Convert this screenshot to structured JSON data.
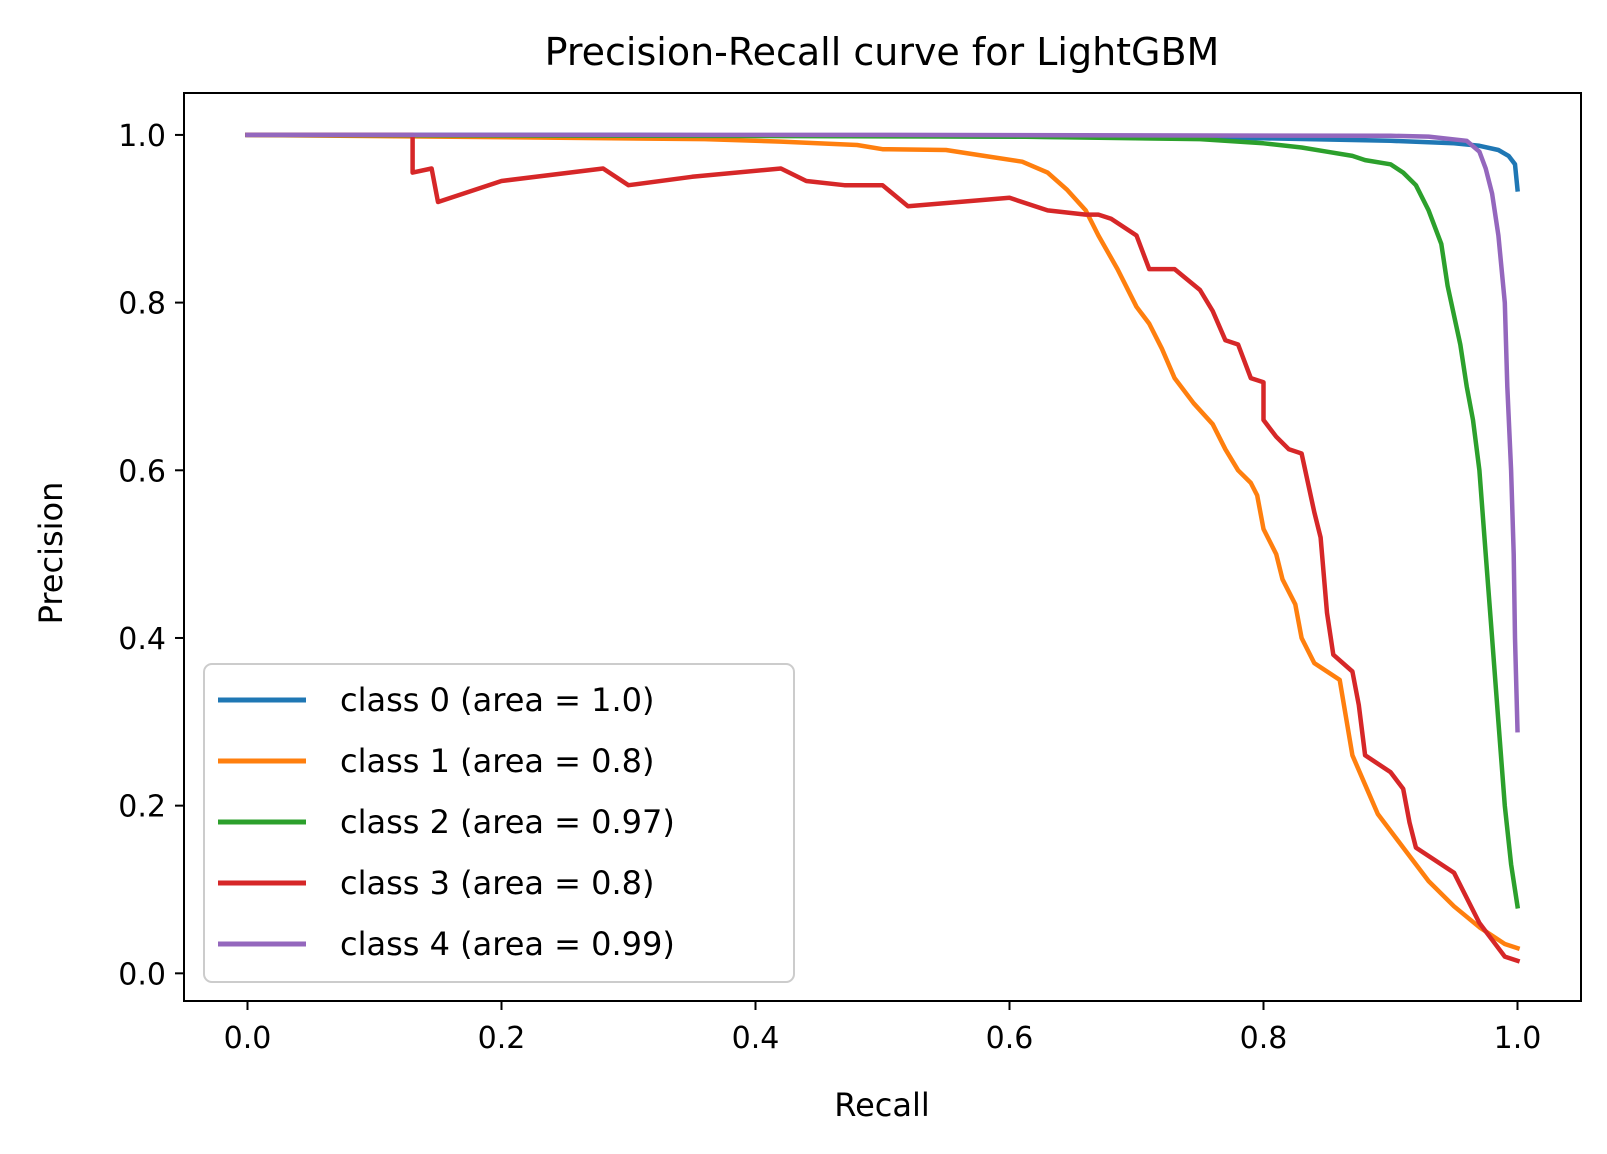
{
  "chart_data": {
    "type": "line",
    "title": "Precision-Recall curve for LightGBM",
    "xlabel": "Recall",
    "ylabel": "Precision",
    "xlim": [
      -0.05,
      1.05
    ],
    "ylim": [
      -0.033,
      1.05
    ],
    "xticks": [
      0.0,
      0.2,
      0.4,
      0.6,
      0.8,
      1.0
    ],
    "xtick_labels": [
      "0.0",
      "0.2",
      "0.4",
      "0.6",
      "0.8",
      "1.0"
    ],
    "yticks": [
      0.0,
      0.2,
      0.4,
      0.6,
      0.8,
      1.0
    ],
    "ytick_labels": [
      "0.0",
      "0.2",
      "0.4",
      "0.6",
      "0.8",
      "1.0"
    ],
    "grid": false,
    "legend_position": "lower-left",
    "series": [
      {
        "name": "class 0 (area = 1.0)",
        "color": "#1f77b4",
        "points": [
          [
            0.0,
            1.0
          ],
          [
            0.3,
            1.0
          ],
          [
            0.6,
            0.998
          ],
          [
            0.8,
            0.996
          ],
          [
            0.9,
            0.993
          ],
          [
            0.95,
            0.99
          ],
          [
            0.97,
            0.987
          ],
          [
            0.985,
            0.982
          ],
          [
            0.993,
            0.975
          ],
          [
            0.998,
            0.965
          ],
          [
            1.0,
            0.935
          ]
        ]
      },
      {
        "name": "class 1 (area = 0.8)",
        "color": "#ff7f0e",
        "points": [
          [
            0.0,
            1.0
          ],
          [
            0.36,
            0.995
          ],
          [
            0.42,
            0.992
          ],
          [
            0.48,
            0.988
          ],
          [
            0.5,
            0.983
          ],
          [
            0.55,
            0.982
          ],
          [
            0.58,
            0.975
          ],
          [
            0.61,
            0.968
          ],
          [
            0.63,
            0.955
          ],
          [
            0.645,
            0.935
          ],
          [
            0.66,
            0.91
          ],
          [
            0.67,
            0.88
          ],
          [
            0.685,
            0.84
          ],
          [
            0.7,
            0.795
          ],
          [
            0.71,
            0.775
          ],
          [
            0.72,
            0.745
          ],
          [
            0.73,
            0.71
          ],
          [
            0.745,
            0.68
          ],
          [
            0.76,
            0.655
          ],
          [
            0.77,
            0.625
          ],
          [
            0.78,
            0.6
          ],
          [
            0.79,
            0.585
          ],
          [
            0.795,
            0.57
          ],
          [
            0.8,
            0.53
          ],
          [
            0.81,
            0.5
          ],
          [
            0.815,
            0.47
          ],
          [
            0.825,
            0.44
          ],
          [
            0.83,
            0.4
          ],
          [
            0.84,
            0.37
          ],
          [
            0.86,
            0.35
          ],
          [
            0.87,
            0.26
          ],
          [
            0.88,
            0.225
          ],
          [
            0.89,
            0.19
          ],
          [
            0.91,
            0.15
          ],
          [
            0.93,
            0.11
          ],
          [
            0.95,
            0.08
          ],
          [
            0.97,
            0.055
          ],
          [
            0.99,
            0.035
          ],
          [
            1.0,
            0.03
          ]
        ]
      },
      {
        "name": "class 2 (area = 0.97)",
        "color": "#2ca02c",
        "points": [
          [
            0.0,
            1.0
          ],
          [
            0.6,
            0.998
          ],
          [
            0.75,
            0.995
          ],
          [
            0.8,
            0.99
          ],
          [
            0.83,
            0.985
          ],
          [
            0.85,
            0.98
          ],
          [
            0.87,
            0.975
          ],
          [
            0.88,
            0.97
          ],
          [
            0.9,
            0.965
          ],
          [
            0.91,
            0.955
          ],
          [
            0.92,
            0.94
          ],
          [
            0.93,
            0.91
          ],
          [
            0.94,
            0.87
          ],
          [
            0.945,
            0.82
          ],
          [
            0.955,
            0.75
          ],
          [
            0.96,
            0.7
          ],
          [
            0.965,
            0.66
          ],
          [
            0.97,
            0.6
          ],
          [
            0.975,
            0.5
          ],
          [
            0.98,
            0.4
          ],
          [
            0.985,
            0.3
          ],
          [
            0.99,
            0.2
          ],
          [
            0.995,
            0.13
          ],
          [
            1.0,
            0.08
          ]
        ]
      },
      {
        "name": "class 3 (area = 0.8)",
        "color": "#d62728",
        "points": [
          [
            0.0,
            1.0
          ],
          [
            0.13,
            1.0
          ],
          [
            0.13,
            0.955
          ],
          [
            0.145,
            0.96
          ],
          [
            0.15,
            0.92
          ],
          [
            0.2,
            0.945
          ],
          [
            0.28,
            0.96
          ],
          [
            0.3,
            0.94
          ],
          [
            0.35,
            0.95
          ],
          [
            0.42,
            0.96
          ],
          [
            0.44,
            0.945
          ],
          [
            0.47,
            0.94
          ],
          [
            0.5,
            0.94
          ],
          [
            0.52,
            0.915
          ],
          [
            0.6,
            0.925
          ],
          [
            0.63,
            0.91
          ],
          [
            0.66,
            0.905
          ],
          [
            0.67,
            0.905
          ],
          [
            0.68,
            0.9
          ],
          [
            0.7,
            0.88
          ],
          [
            0.71,
            0.84
          ],
          [
            0.73,
            0.84
          ],
          [
            0.75,
            0.815
          ],
          [
            0.76,
            0.79
          ],
          [
            0.77,
            0.755
          ],
          [
            0.78,
            0.75
          ],
          [
            0.79,
            0.71
          ],
          [
            0.8,
            0.705
          ],
          [
            0.8,
            0.66
          ],
          [
            0.81,
            0.64
          ],
          [
            0.82,
            0.625
          ],
          [
            0.83,
            0.62
          ],
          [
            0.84,
            0.55
          ],
          [
            0.845,
            0.52
          ],
          [
            0.85,
            0.43
          ],
          [
            0.855,
            0.38
          ],
          [
            0.87,
            0.36
          ],
          [
            0.875,
            0.32
          ],
          [
            0.88,
            0.26
          ],
          [
            0.9,
            0.24
          ],
          [
            0.91,
            0.22
          ],
          [
            0.915,
            0.18
          ],
          [
            0.92,
            0.15
          ],
          [
            0.93,
            0.14
          ],
          [
            0.95,
            0.12
          ],
          [
            0.96,
            0.09
          ],
          [
            0.97,
            0.06
          ],
          [
            0.98,
            0.04
          ],
          [
            0.99,
            0.02
          ],
          [
            1.0,
            0.015
          ]
        ]
      },
      {
        "name": "class 4 (area = 0.99)",
        "color": "#9467bd",
        "points": [
          [
            0.0,
            1.0
          ],
          [
            0.5,
            1.0
          ],
          [
            0.9,
            0.999
          ],
          [
            0.93,
            0.998
          ],
          [
            0.96,
            0.993
          ],
          [
            0.97,
            0.98
          ],
          [
            0.975,
            0.96
          ],
          [
            0.98,
            0.93
          ],
          [
            0.985,
            0.88
          ],
          [
            0.99,
            0.8
          ],
          [
            0.992,
            0.7
          ],
          [
            0.995,
            0.6
          ],
          [
            0.997,
            0.5
          ],
          [
            0.998,
            0.4
          ],
          [
            1.0,
            0.29
          ]
        ]
      }
    ]
  }
}
